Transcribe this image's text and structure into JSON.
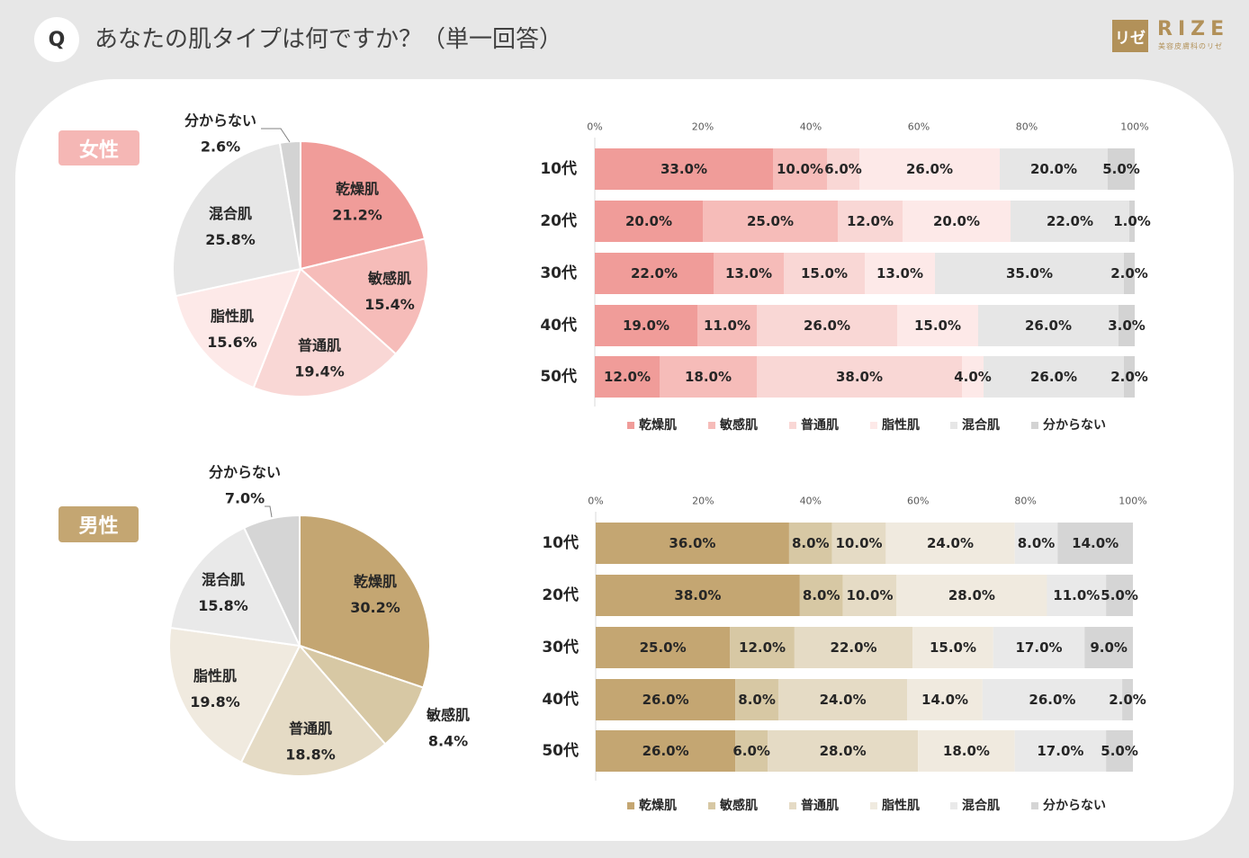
{
  "header": {
    "q_mark": "Q",
    "title": "あなたの肌タイプは何ですか？（単一回答）"
  },
  "logo": {
    "mark": "リゼ",
    "name": "RIZE",
    "tagline": "美容皮膚科のリゼ"
  },
  "colors": {
    "page_bg": "#e7e7e7",
    "panel_bg": "#ffffff",
    "question_circle": "#ffffff",
    "text": "#262626",
    "logo": "#b29159",
    "female_badge": "#f5b7b5",
    "male_badge": "#c4a672"
  },
  "chart_data": [
    {
      "type": "pie",
      "title": "女性",
      "categories": [
        "乾燥肌",
        "敏感肌",
        "普通肌",
        "脂性肌",
        "混合肌",
        "分からない"
      ],
      "values": [
        21.2,
        15.4,
        19.4,
        15.6,
        25.8,
        2.6
      ],
      "labels": [
        "21.2%",
        "15.4%",
        "19.4%",
        "15.6%",
        "25.8%",
        "2.6%"
      ],
      "colors": [
        "#f09c99",
        "#f6bcb9",
        "#f9d7d5",
        "#fde9e8",
        "#e6e6e6",
        "#d3d3d3"
      ]
    },
    {
      "type": "bar",
      "horizontal": true,
      "stacked": true,
      "categories": [
        "10代",
        "20代",
        "30代",
        "40代",
        "50代"
      ],
      "xlim": [
        0,
        100
      ],
      "xticks": [
        "0%",
        "20%",
        "40%",
        "60%",
        "80%",
        "100%"
      ],
      "legend": "bottom",
      "series": [
        {
          "name": "乾燥肌",
          "color": "#f09c99",
          "values": [
            33,
            20,
            22,
            19,
            12
          ],
          "labels": [
            "33.0%",
            "20.0%",
            "22.0%",
            "19.0%",
            "12.0%"
          ]
        },
        {
          "name": "敏感肌",
          "color": "#f6bcb9",
          "values": [
            10,
            25,
            13,
            11,
            18
          ],
          "labels": [
            "10.0%",
            "25.0%",
            "13.0%",
            "11.0%",
            "18.0%"
          ]
        },
        {
          "name": "普通肌",
          "color": "#f9d7d5",
          "values": [
            6,
            12,
            15,
            26,
            38
          ],
          "labels": [
            "6.0%",
            "12.0%",
            "15.0%",
            "26.0%",
            "38.0%"
          ]
        },
        {
          "name": "脂性肌",
          "color": "#fde9e8",
          "values": [
            26,
            20,
            13,
            15,
            4
          ],
          "labels": [
            "26.0%",
            "20.0%",
            "13.0%",
            "15.0%",
            "4.0%"
          ]
        },
        {
          "name": "混合肌",
          "color": "#e6e6e6",
          "values": [
            20,
            22,
            35,
            26,
            26
          ],
          "labels": [
            "20.0%",
            "22.0%",
            "35.0%",
            "26.0%",
            "26.0%"
          ]
        },
        {
          "name": "分からない",
          "color": "#d3d3d3",
          "values": [
            5,
            1,
            2,
            3,
            2
          ],
          "labels": [
            "5.0%",
            "1.0%",
            "2.0%",
            "3.0%",
            "2.0%"
          ]
        }
      ]
    },
    {
      "type": "pie",
      "title": "男性",
      "categories": [
        "乾燥肌",
        "敏感肌",
        "普通肌",
        "脂性肌",
        "混合肌",
        "分からない"
      ],
      "values": [
        30.2,
        8.4,
        18.8,
        19.8,
        15.8,
        7.0
      ],
      "labels": [
        "30.2%",
        "8.4%",
        "18.8%",
        "19.8%",
        "15.8%",
        "7.0%"
      ],
      "colors": [
        "#c4a672",
        "#d7c8a4",
        "#e5dbc5",
        "#f0eadf",
        "#e9e9e9",
        "#d5d5d5"
      ]
    },
    {
      "type": "bar",
      "horizontal": true,
      "stacked": true,
      "categories": [
        "10代",
        "20代",
        "30代",
        "40代",
        "50代"
      ],
      "xlim": [
        0,
        100
      ],
      "xticks": [
        "0%",
        "20%",
        "40%",
        "60%",
        "80%",
        "100%"
      ],
      "legend": "bottom",
      "series": [
        {
          "name": "乾燥肌",
          "color": "#c4a672",
          "values": [
            36,
            38,
            25,
            26,
            26
          ],
          "labels": [
            "36.0%",
            "38.0%",
            "25.0%",
            "26.0%",
            "26.0%"
          ]
        },
        {
          "name": "敏感肌",
          "color": "#d7c8a4",
          "values": [
            8,
            8,
            12,
            8,
            6
          ],
          "labels": [
            "8.0%",
            "8.0%",
            "12.0%",
            "8.0%",
            "6.0%"
          ]
        },
        {
          "name": "普通肌",
          "color": "#e5dbc5",
          "values": [
            10,
            10,
            22,
            24,
            28
          ],
          "labels": [
            "10.0%",
            "10.0%",
            "22.0%",
            "24.0%",
            "28.0%"
          ]
        },
        {
          "name": "脂性肌",
          "color": "#f0eadf",
          "values": [
            24,
            28,
            15,
            14,
            18
          ],
          "labels": [
            "24.0%",
            "28.0%",
            "15.0%",
            "14.0%",
            "18.0%"
          ]
        },
        {
          "name": "混合肌",
          "color": "#e9e9e9",
          "values": [
            8,
            11,
            17,
            26,
            17
          ],
          "labels": [
            "8.0%",
            "11.0%",
            "17.0%",
            "26.0%",
            "17.0%"
          ]
        },
        {
          "name": "分からない",
          "color": "#d5d5d5",
          "values": [
            14,
            5,
            9,
            2,
            5
          ],
          "labels": [
            "14.0%",
            "5.0%",
            "9.0%",
            "2.0%",
            "5.0%"
          ]
        }
      ]
    }
  ]
}
